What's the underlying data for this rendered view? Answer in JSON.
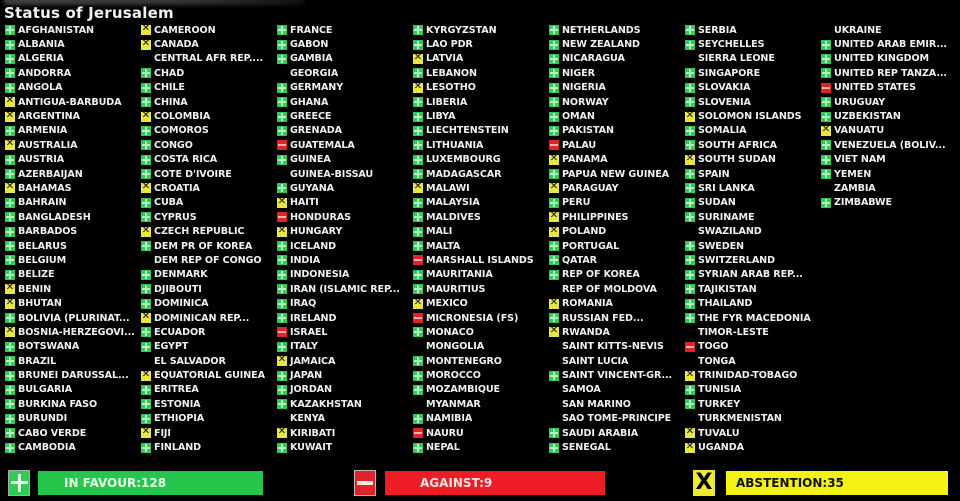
{
  "title": "Status of Jerusalem",
  "vote_colors": {
    "Y": "#2ecc55",
    "N": "#e0222a",
    "A": "#e8e640"
  },
  "vote_icons": {
    "Y": "plus-icon",
    "N": "minus-icon",
    "A": "x-icon",
    "": "none"
  },
  "columns": [
    [
      {
        "n": "AFGHANISTAN",
        "v": "Y"
      },
      {
        "n": "ALBANIA",
        "v": "Y"
      },
      {
        "n": "ALGERIA",
        "v": "Y"
      },
      {
        "n": "ANDORRA",
        "v": "Y"
      },
      {
        "n": "ANGOLA",
        "v": "Y"
      },
      {
        "n": "ANTIGUA-BARBUDA",
        "v": "A"
      },
      {
        "n": "ARGENTINA",
        "v": "A"
      },
      {
        "n": "ARMENIA",
        "v": "Y"
      },
      {
        "n": "AUSTRALIA",
        "v": "A"
      },
      {
        "n": "AUSTRIA",
        "v": "Y"
      },
      {
        "n": "AZERBAIJAN",
        "v": "Y"
      },
      {
        "n": "BAHAMAS",
        "v": "A"
      },
      {
        "n": "BAHRAIN",
        "v": "Y"
      },
      {
        "n": "BANGLADESH",
        "v": "Y"
      },
      {
        "n": "BARBADOS",
        "v": "Y"
      },
      {
        "n": "BELARUS",
        "v": "Y"
      },
      {
        "n": "BELGIUM",
        "v": "Y"
      },
      {
        "n": "BELIZE",
        "v": "Y"
      },
      {
        "n": "BENIN",
        "v": "A"
      },
      {
        "n": "BHUTAN",
        "v": "A"
      },
      {
        "n": "BOLIVIA  (PLURINAT...",
        "v": "Y"
      },
      {
        "n": "BOSNIA-HERZEGOVI...",
        "v": "A"
      },
      {
        "n": "BOTSWANA",
        "v": "Y"
      },
      {
        "n": "BRAZIL",
        "v": "Y"
      },
      {
        "n": "BRUNEI DARUSSAL...",
        "v": "Y"
      },
      {
        "n": "BULGARIA",
        "v": "Y"
      },
      {
        "n": "BURKINA FASO",
        "v": "Y"
      },
      {
        "n": "BURUNDI",
        "v": "Y"
      },
      {
        "n": "CABO VERDE",
        "v": "Y"
      },
      {
        "n": "CAMBODIA",
        "v": "Y"
      }
    ],
    [
      {
        "n": "CAMEROON",
        "v": "A"
      },
      {
        "n": "CANADA",
        "v": "A"
      },
      {
        "n": "CENTRAL AFR REP....",
        "v": ""
      },
      {
        "n": "CHAD",
        "v": "Y"
      },
      {
        "n": "CHILE",
        "v": "Y"
      },
      {
        "n": "CHINA",
        "v": "Y"
      },
      {
        "n": "COLOMBIA",
        "v": "A"
      },
      {
        "n": "COMOROS",
        "v": "Y"
      },
      {
        "n": "CONGO",
        "v": "Y"
      },
      {
        "n": "COSTA RICA",
        "v": "Y"
      },
      {
        "n": "COTE D'IVOIRE",
        "v": "Y"
      },
      {
        "n": "CROATIA",
        "v": "A"
      },
      {
        "n": "CUBA",
        "v": "Y"
      },
      {
        "n": "CYPRUS",
        "v": "Y"
      },
      {
        "n": "CZECH REPUBLIC",
        "v": "A"
      },
      {
        "n": "DEM PR OF KOREA",
        "v": "Y"
      },
      {
        "n": "DEM REP OF CONGO",
        "v": ""
      },
      {
        "n": "DENMARK",
        "v": "Y"
      },
      {
        "n": "DJIBOUTI",
        "v": "Y"
      },
      {
        "n": "DOMINICA",
        "v": "Y"
      },
      {
        "n": "DOMINICAN REP...",
        "v": "A"
      },
      {
        "n": "ECUADOR",
        "v": "Y"
      },
      {
        "n": "EGYPT",
        "v": "Y"
      },
      {
        "n": "EL SALVADOR",
        "v": ""
      },
      {
        "n": "EQUATORIAL GUINEA",
        "v": "A"
      },
      {
        "n": "ERITREA",
        "v": "Y"
      },
      {
        "n": "ESTONIA",
        "v": "Y"
      },
      {
        "n": "ETHIOPIA",
        "v": "Y"
      },
      {
        "n": "FIJI",
        "v": "A"
      },
      {
        "n": "FINLAND",
        "v": "Y"
      }
    ],
    [
      {
        "n": "FRANCE",
        "v": "Y"
      },
      {
        "n": "GABON",
        "v": "Y"
      },
      {
        "n": "GAMBIA",
        "v": "Y"
      },
      {
        "n": "GEORGIA",
        "v": ""
      },
      {
        "n": "GERMANY",
        "v": "Y"
      },
      {
        "n": "GHANA",
        "v": "Y"
      },
      {
        "n": "GREECE",
        "v": "Y"
      },
      {
        "n": "GRENADA",
        "v": "Y"
      },
      {
        "n": "GUATEMALA",
        "v": "N"
      },
      {
        "n": "GUINEA",
        "v": "Y"
      },
      {
        "n": "GUINEA-BISSAU",
        "v": ""
      },
      {
        "n": "GUYANA",
        "v": "Y"
      },
      {
        "n": "HAITI",
        "v": "A"
      },
      {
        "n": "HONDURAS",
        "v": "N"
      },
      {
        "n": "HUNGARY",
        "v": "A"
      },
      {
        "n": "ICELAND",
        "v": "Y"
      },
      {
        "n": "INDIA",
        "v": "Y"
      },
      {
        "n": "INDONESIA",
        "v": "Y"
      },
      {
        "n": "IRAN (ISLAMIC REP...",
        "v": "Y"
      },
      {
        "n": "IRAQ",
        "v": "Y"
      },
      {
        "n": "IRELAND",
        "v": "Y"
      },
      {
        "n": "ISRAEL",
        "v": "N"
      },
      {
        "n": "ITALY",
        "v": "Y"
      },
      {
        "n": "JAMAICA",
        "v": "A"
      },
      {
        "n": "JAPAN",
        "v": "Y"
      },
      {
        "n": "JORDAN",
        "v": "Y"
      },
      {
        "n": "KAZAKHSTAN",
        "v": "Y"
      },
      {
        "n": "KENYA",
        "v": ""
      },
      {
        "n": "KIRIBATI",
        "v": "A"
      },
      {
        "n": "KUWAIT",
        "v": "Y"
      }
    ],
    [
      {
        "n": "KYRGYZSTAN",
        "v": "Y"
      },
      {
        "n": "LAO PDR",
        "v": "Y"
      },
      {
        "n": "LATVIA",
        "v": "A"
      },
      {
        "n": "LEBANON",
        "v": "Y"
      },
      {
        "n": "LESOTHO",
        "v": "A"
      },
      {
        "n": "LIBERIA",
        "v": "Y"
      },
      {
        "n": "LIBYA",
        "v": "Y"
      },
      {
        "n": "LIECHTENSTEIN",
        "v": "Y"
      },
      {
        "n": "LITHUANIA",
        "v": "Y"
      },
      {
        "n": "LUXEMBOURG",
        "v": "Y"
      },
      {
        "n": "MADAGASCAR",
        "v": "Y"
      },
      {
        "n": "MALAWI",
        "v": "A"
      },
      {
        "n": "MALAYSIA",
        "v": "Y"
      },
      {
        "n": "MALDIVES",
        "v": "Y"
      },
      {
        "n": "MALI",
        "v": "Y"
      },
      {
        "n": "MALTA",
        "v": "Y"
      },
      {
        "n": "MARSHALL ISLANDS",
        "v": "N"
      },
      {
        "n": "MAURITANIA",
        "v": "Y"
      },
      {
        "n": "MAURITIUS",
        "v": "Y"
      },
      {
        "n": "MEXICO",
        "v": "A"
      },
      {
        "n": "MICRONESIA (FS)",
        "v": "N"
      },
      {
        "n": "MONACO",
        "v": "Y"
      },
      {
        "n": "MONGOLIA",
        "v": ""
      },
      {
        "n": "MONTENEGRO",
        "v": "Y"
      },
      {
        "n": "MOROCCO",
        "v": "Y"
      },
      {
        "n": "MOZAMBIQUE",
        "v": "Y"
      },
      {
        "n": "MYANMAR",
        "v": ""
      },
      {
        "n": "NAMIBIA",
        "v": "Y"
      },
      {
        "n": "NAURU",
        "v": "N"
      },
      {
        "n": "NEPAL",
        "v": "Y"
      }
    ],
    [
      {
        "n": "NETHERLANDS",
        "v": "Y"
      },
      {
        "n": "NEW ZEALAND",
        "v": "Y"
      },
      {
        "n": "NICARAGUA",
        "v": "Y"
      },
      {
        "n": "NIGER",
        "v": "Y"
      },
      {
        "n": "NIGERIA",
        "v": "Y"
      },
      {
        "n": "NORWAY",
        "v": "Y"
      },
      {
        "n": "OMAN",
        "v": "Y"
      },
      {
        "n": "PAKISTAN",
        "v": "Y"
      },
      {
        "n": "PALAU",
        "v": "N"
      },
      {
        "n": "PANAMA",
        "v": "A"
      },
      {
        "n": "PAPUA NEW GUINEA",
        "v": "Y"
      },
      {
        "n": "PARAGUAY",
        "v": "A"
      },
      {
        "n": "PERU",
        "v": "Y"
      },
      {
        "n": "PHILIPPINES",
        "v": "A"
      },
      {
        "n": "POLAND",
        "v": "A"
      },
      {
        "n": "PORTUGAL",
        "v": "Y"
      },
      {
        "n": "QATAR",
        "v": "Y"
      },
      {
        "n": "REP OF KOREA",
        "v": "Y"
      },
      {
        "n": "REP OF MOLDOVA",
        "v": ""
      },
      {
        "n": "ROMANIA",
        "v": "A"
      },
      {
        "n": "RUSSIAN FED...",
        "v": "Y"
      },
      {
        "n": "RWANDA",
        "v": "A"
      },
      {
        "n": "SAINT KITTS-NEVIS",
        "v": ""
      },
      {
        "n": "SAINT LUCIA",
        "v": ""
      },
      {
        "n": "SAINT VINCENT-GR...",
        "v": "Y"
      },
      {
        "n": "SAMOA",
        "v": ""
      },
      {
        "n": "SAN MARINO",
        "v": ""
      },
      {
        "n": "SAO TOME-PRINCIPE",
        "v": ""
      },
      {
        "n": "SAUDI ARABIA",
        "v": "Y"
      },
      {
        "n": "SENEGAL",
        "v": "Y"
      }
    ],
    [
      {
        "n": "SERBIA",
        "v": "Y"
      },
      {
        "n": "SEYCHELLES",
        "v": "Y"
      },
      {
        "n": "SIERRA LEONE",
        "v": ""
      },
      {
        "n": "SINGAPORE",
        "v": "Y"
      },
      {
        "n": "SLOVAKIA",
        "v": "Y"
      },
      {
        "n": "SLOVENIA",
        "v": "Y"
      },
      {
        "n": "SOLOMON ISLANDS",
        "v": "A"
      },
      {
        "n": "SOMALIA",
        "v": "Y"
      },
      {
        "n": "SOUTH AFRICA",
        "v": "Y"
      },
      {
        "n": "SOUTH SUDAN",
        "v": "A"
      },
      {
        "n": "SPAIN",
        "v": "Y"
      },
      {
        "n": "SRI LANKA",
        "v": "Y"
      },
      {
        "n": "SUDAN",
        "v": "Y"
      },
      {
        "n": "SURINAME",
        "v": "Y"
      },
      {
        "n": "SWAZILAND",
        "v": ""
      },
      {
        "n": "SWEDEN",
        "v": "Y"
      },
      {
        "n": "SWITZERLAND",
        "v": "Y"
      },
      {
        "n": "SYRIAN ARAB REP...",
        "v": "Y"
      },
      {
        "n": "TAJIKISTAN",
        "v": "Y"
      },
      {
        "n": "THAILAND",
        "v": "Y"
      },
      {
        "n": "THE FYR MACEDONIA",
        "v": "Y"
      },
      {
        "n": "TIMOR-LESTE",
        "v": ""
      },
      {
        "n": "TOGO",
        "v": "N"
      },
      {
        "n": "TONGA",
        "v": ""
      },
      {
        "n": "TRINIDAD-TOBAGO",
        "v": "A"
      },
      {
        "n": "TUNISIA",
        "v": "Y"
      },
      {
        "n": "TURKEY",
        "v": "Y"
      },
      {
        "n": "TURKMENISTAN",
        "v": ""
      },
      {
        "n": "TUVALU",
        "v": "A"
      },
      {
        "n": "UGANDA",
        "v": "A"
      }
    ],
    [
      {
        "n": "UKRAINE",
        "v": ""
      },
      {
        "n": "UNITED ARAB EMIR...",
        "v": "Y"
      },
      {
        "n": "UNITED KINGDOM",
        "v": "Y"
      },
      {
        "n": "UNITED REP TANZA...",
        "v": "Y"
      },
      {
        "n": "UNITED STATES",
        "v": "N"
      },
      {
        "n": "URUGUAY",
        "v": "Y"
      },
      {
        "n": "UZBEKISTAN",
        "v": "Y"
      },
      {
        "n": "VANUATU",
        "v": "A"
      },
      {
        "n": "VENEZUELA (BOLIV...",
        "v": "Y"
      },
      {
        "n": "VIET NAM",
        "v": "Y"
      },
      {
        "n": "YEMEN",
        "v": "Y"
      },
      {
        "n": "ZAMBIA",
        "v": ""
      },
      {
        "n": "ZIMBABWE",
        "v": "Y"
      }
    ]
  ],
  "totals": {
    "favour_label": "IN FAVOUR:128",
    "against_label": "AGAINST:9",
    "abstention_label": "ABSTENTION:35"
  }
}
